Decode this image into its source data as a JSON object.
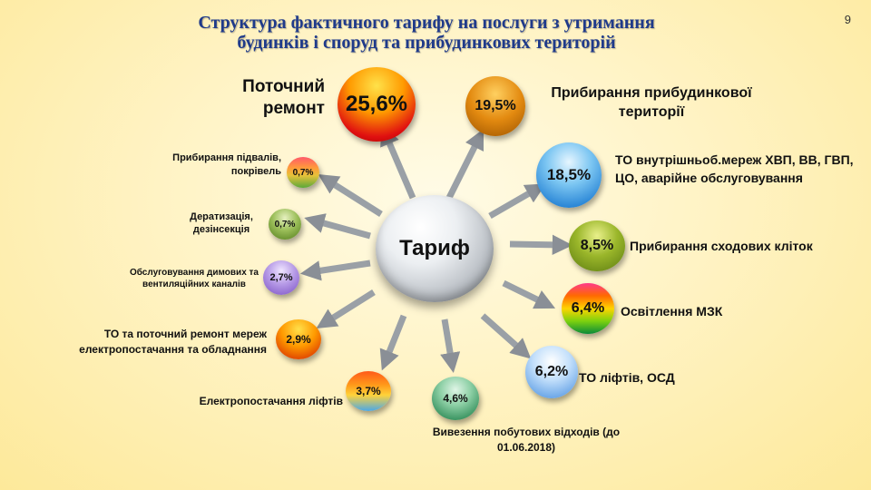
{
  "title": {
    "line1": "Структура фактичного тарифу на послуги з утримання",
    "line2": "будинків і споруд та прибудинкових територій"
  },
  "page_number": "9",
  "hub": {
    "label": "Тариф"
  },
  "items": [
    {
      "value": "25,6%",
      "label": "Поточний ремонт",
      "color": "#d40000"
    },
    {
      "value": "19,5%",
      "label": "Прибирання прибудинкової території",
      "color": "#c86a00"
    },
    {
      "value": "18,5%",
      "label": "ТО внутрішньоб.мереж ХВП, ВВ, ГВП, ЦО, аварійне обслуговування",
      "color": "#1f7fd1"
    },
    {
      "value": "8,5%",
      "label": "Прибирання сходових кліток",
      "color": "#6a8f12"
    },
    {
      "value": "6,4%",
      "label": "Освітлення МЗК",
      "color": "multicolor"
    },
    {
      "value": "6,2%",
      "label": "ТО ліфтів, ОСД",
      "color": "#6ea8e8"
    },
    {
      "value": "4,6%",
      "label": "Вивезення побутових відходів (до 01.06.2018)",
      "color": "#2e8b57"
    },
    {
      "value": "3,7%",
      "label": "Електропостачання ліфтів",
      "color": "multicolor"
    },
    {
      "value": "2,9%",
      "label": "ТО та поточний ремонт мереж електропостачання та обладнання",
      "color": "#e8a000"
    },
    {
      "value": "2,7%",
      "label": "Обслуговування димових та вентиляційних каналів",
      "color": "#9b6fd6"
    },
    {
      "value": "0,7%",
      "label": "Дератизація, дезінсекція",
      "color": "#5a8f2a"
    },
    {
      "value": "0,7%",
      "label": "Прибирання підвалів, покрівель",
      "color": "multicolor"
    }
  ]
}
